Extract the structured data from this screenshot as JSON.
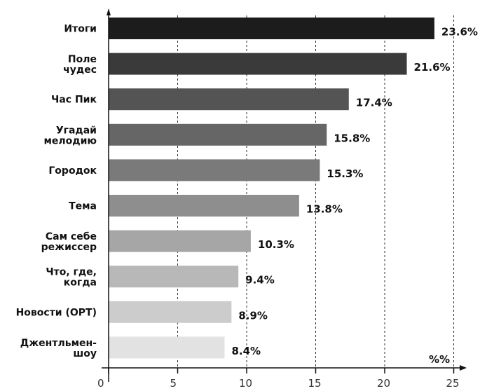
{
  "chart_data": {
    "type": "bar",
    "orientation": "horizontal",
    "categories": [
      [
        "Итоги"
      ],
      [
        "Поле",
        "чудес"
      ],
      [
        "Час Пик"
      ],
      [
        "Угадай",
        "мелодию"
      ],
      [
        "Городок"
      ],
      [
        "Тема"
      ],
      [
        "Сам себе",
        "режиссер"
      ],
      [
        "Что, где,",
        "когда"
      ],
      [
        "Новости (ОРТ)"
      ],
      [
        "Джентльмен-",
        "шоу"
      ]
    ],
    "values": [
      23.6,
      21.6,
      17.4,
      15.8,
      15.3,
      13.8,
      10.3,
      9.4,
      8.9,
      8.4
    ],
    "value_labels": [
      "23.6%",
      "21.6%",
      "17.4%",
      "15.8%",
      "15.3%",
      "13.8%",
      "10.3%",
      "9.4%",
      "8.9%",
      "8.4%"
    ],
    "bar_colors": [
      "#1c1c1c",
      "#3a3a3a",
      "#545454",
      "#666666",
      "#7a7a7a",
      "#8e8e8e",
      "#a6a6a6",
      "#b8b8b8",
      "#cccccc",
      "#e2e2e2"
    ],
    "x_ticks": [
      0,
      5,
      10,
      15,
      20,
      25
    ],
    "x_tick_labels": [
      "0",
      "5",
      "10",
      "15",
      "20",
      "25"
    ],
    "xlim": [
      0,
      25.6
    ],
    "unit_label": "%%",
    "grid": "vertical dashed"
  }
}
